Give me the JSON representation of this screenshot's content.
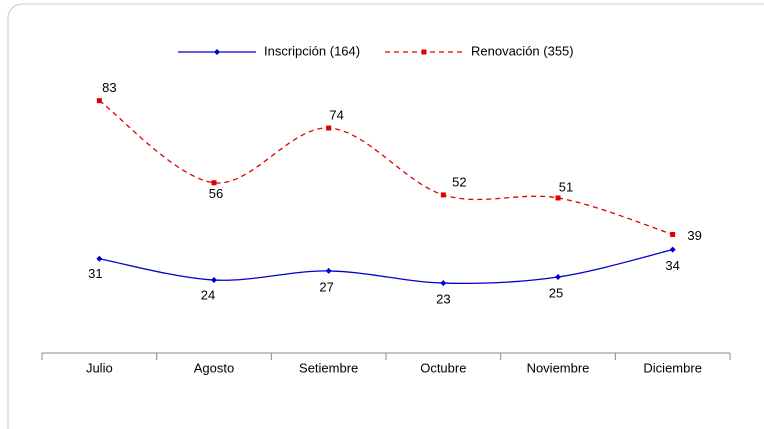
{
  "chart_data": {
    "type": "line",
    "categories": [
      "Julio",
      "Agosto",
      "Setiembre",
      "Octubre",
      "Noviembre",
      "Diciembre"
    ],
    "series": [
      {
        "name": "Inscripción (164)",
        "color": "#0000cc",
        "values": [
          31,
          24,
          27,
          23,
          25,
          34
        ]
      },
      {
        "name": "Renovación (355)",
        "color": "#dd0000",
        "values": [
          83,
          56,
          74,
          52,
          51,
          39
        ]
      }
    ],
    "ylim": [
      0,
      90
    ]
  }
}
